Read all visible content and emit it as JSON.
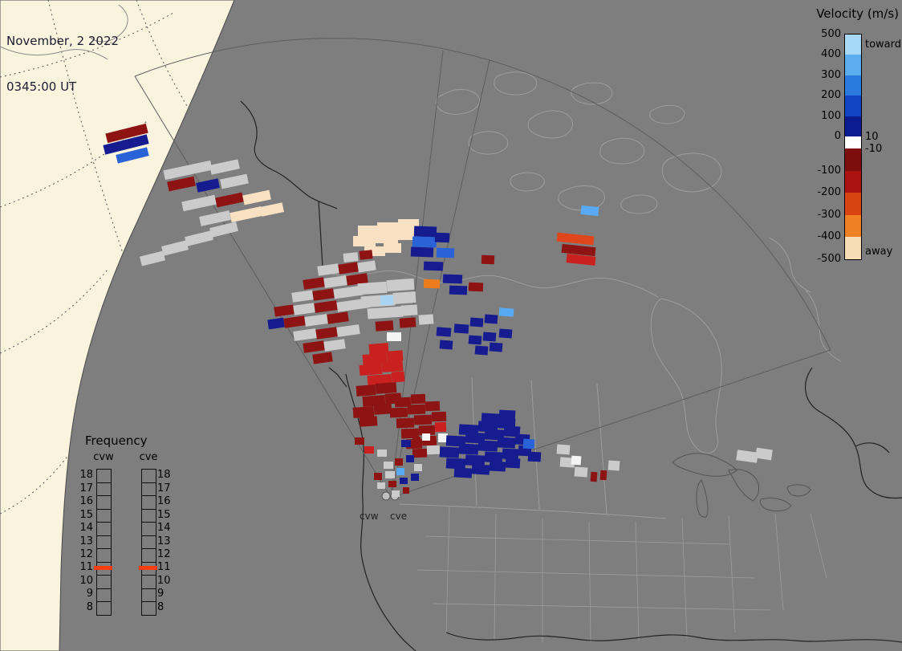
{
  "header": {
    "date": "November, 2 2022",
    "time": "0345:00 UT"
  },
  "velocity_legend": {
    "title": "Velocity (m/s)",
    "toward_label": "toward",
    "away_label": "away",
    "zero_upper": "10",
    "zero_lower": "-10",
    "toward_ticks": [
      "500",
      "400",
      "300",
      "200",
      "100",
      "0"
    ],
    "away_ticks": [
      "-100",
      "-200",
      "-300",
      "-400",
      "-500"
    ],
    "toward_colors": [
      "#a8d8f8",
      "#5cacf0",
      "#2a7ae0",
      "#1244c4",
      "#0a1c90"
    ],
    "away_colors": [
      "#7c0e0e",
      "#ac1212",
      "#d84410",
      "#f08024",
      "#f8dcb4"
    ]
  },
  "frequency_legend": {
    "title": "Frequency",
    "columns": [
      "cvw",
      "cve"
    ],
    "ticks": [
      "18",
      "17",
      "16",
      "15",
      "14",
      "13",
      "12",
      "11",
      "10",
      "9",
      "8"
    ],
    "marker_tick": "11",
    "marker_color": "#f93d10"
  },
  "radar_sites": [
    {
      "label": "cvw"
    },
    {
      "label": "cve"
    }
  ],
  "map": {
    "background": "#7e7e7e",
    "dayside": "#faf4de",
    "colors": {
      "dr": "#8e1414",
      "r": "#c92020",
      "ro": "#e0461c",
      "o": "#ec7c1e",
      "c": "#f8e0c2",
      "g": "#cbcbcb",
      "n": "#161c90",
      "b": "#2a62d8",
      "lb": "#58aaf4",
      "cy": "#a8d4f2",
      "w": "#f4f4f4"
    },
    "cells": [
      [
        "dr",
        132,
        160,
        52,
        12,
        -14
      ],
      [
        "n",
        129,
        174,
        56,
        12,
        -14
      ],
      [
        "b",
        145,
        188,
        40,
        11,
        -14
      ],
      [
        "g",
        204,
        206,
        60,
        12,
        -12
      ],
      [
        "g",
        262,
        202,
        36,
        12,
        -12
      ],
      [
        "dr",
        209,
        223,
        34,
        12,
        -12
      ],
      [
        "n",
        245,
        225,
        28,
        12,
        -12
      ],
      [
        "g",
        275,
        220,
        34,
        12,
        -12
      ],
      [
        "g",
        227,
        247,
        42,
        12,
        -12
      ],
      [
        "dr",
        269,
        243,
        34,
        12,
        -12
      ],
      [
        "c",
        303,
        240,
        34,
        12,
        -12
      ],
      [
        "g",
        249,
        266,
        38,
        12,
        -12
      ],
      [
        "c",
        287,
        261,
        40,
        12,
        -12
      ],
      [
        "c",
        325,
        255,
        28,
        12,
        -12
      ],
      [
        "g",
        175,
        316,
        30,
        12,
        -14
      ],
      [
        "g",
        202,
        303,
        32,
        12,
        -14
      ],
      [
        "g",
        231,
        291,
        34,
        12,
        -14
      ],
      [
        "g",
        262,
        280,
        34,
        12,
        -14
      ],
      [
        "c",
        446,
        281,
        26,
        13,
        0
      ],
      [
        "c",
        470,
        277,
        28,
        13,
        0
      ],
      [
        "c",
        496,
        273,
        26,
        13,
        0
      ],
      [
        "c",
        440,
        294,
        28,
        13,
        0
      ],
      [
        "c",
        466,
        290,
        30,
        13,
        0
      ],
      [
        "c",
        494,
        286,
        26,
        13,
        0
      ],
      [
        "c",
        454,
        307,
        26,
        12,
        0
      ],
      [
        "c",
        478,
        303,
        22,
        12,
        0
      ],
      [
        "n",
        516,
        282,
        28,
        13,
        2
      ],
      [
        "b",
        514,
        295,
        30,
        13,
        2
      ],
      [
        "n",
        512,
        308,
        28,
        12,
        2
      ],
      [
        "n",
        542,
        290,
        18,
        12,
        2
      ],
      [
        "b",
        544,
        309,
        22,
        12,
        2
      ],
      [
        "n",
        528,
        326,
        24,
        11,
        2
      ],
      [
        "g",
        396,
        330,
        26,
        12,
        -8
      ],
      [
        "dr",
        422,
        328,
        24,
        12,
        -8
      ],
      [
        "g",
        446,
        326,
        22,
        12,
        -8
      ],
      [
        "dr",
        378,
        347,
        26,
        12,
        -8
      ],
      [
        "g",
        404,
        345,
        28,
        12,
        -8
      ],
      [
        "dr",
        432,
        342,
        26,
        12,
        -8
      ],
      [
        "g",
        364,
        363,
        26,
        12,
        -8
      ],
      [
        "dr",
        390,
        361,
        26,
        12,
        -8
      ],
      [
        "g",
        416,
        358,
        36,
        12,
        -8
      ],
      [
        "dr",
        342,
        381,
        24,
        12,
        -8
      ],
      [
        "g",
        366,
        379,
        26,
        12,
        -8
      ],
      [
        "dr",
        392,
        376,
        28,
        12,
        -8
      ],
      [
        "g",
        420,
        374,
        40,
        12,
        -8
      ],
      [
        "n",
        334,
        397,
        20,
        12,
        -8
      ],
      [
        "dr",
        354,
        395,
        26,
        12,
        -8
      ],
      [
        "g",
        380,
        393,
        28,
        12,
        -8
      ],
      [
        "dr",
        408,
        390,
        26,
        12,
        -8
      ],
      [
        "g",
        366,
        411,
        28,
        12,
        -8
      ],
      [
        "dr",
        394,
        409,
        26,
        12,
        -8
      ],
      [
        "g",
        420,
        406,
        28,
        12,
        -8
      ],
      [
        "dr",
        378,
        426,
        26,
        12,
        -8
      ],
      [
        "g",
        404,
        424,
        26,
        12,
        -8
      ],
      [
        "dr",
        390,
        440,
        24,
        12,
        -8
      ],
      [
        "g",
        446,
        352,
        36,
        14,
        -4
      ],
      [
        "g",
        482,
        348,
        34,
        14,
        -4
      ],
      [
        "g",
        450,
        368,
        42,
        14,
        -4
      ],
      [
        "g",
        490,
        364,
        28,
        14,
        -4
      ],
      [
        "g",
        458,
        383,
        44,
        13,
        -4
      ],
      [
        "g",
        500,
        380,
        20,
        13,
        -4
      ],
      [
        "cy",
        474,
        368,
        16,
        12,
        0
      ],
      [
        "dr",
        468,
        400,
        22,
        12,
        -4
      ],
      [
        "dr",
        498,
        396,
        20,
        12,
        -4
      ],
      [
        "g",
        522,
        392,
        18,
        12,
        -4
      ],
      [
        "w",
        482,
        414,
        18,
        11,
        0
      ],
      [
        "g",
        428,
        315,
        18,
        11,
        -6
      ],
      [
        "dr",
        448,
        312,
        16,
        11,
        -6
      ],
      [
        "o",
        528,
        348,
        20,
        11,
        2
      ],
      [
        "n",
        552,
        342,
        24,
        11,
        2
      ],
      [
        "n",
        560,
        356,
        22,
        11,
        2
      ],
      [
        "dr",
        584,
        352,
        18,
        11,
        2
      ],
      [
        "dr",
        600,
        318,
        16,
        11,
        2
      ],
      [
        "n",
        544,
        408,
        18,
        11,
        4
      ],
      [
        "n",
        566,
        404,
        18,
        11,
        4
      ],
      [
        "n",
        586,
        396,
        16,
        11,
        4
      ],
      [
        "n",
        604,
        392,
        16,
        11,
        4
      ],
      [
        "n",
        584,
        418,
        16,
        11,
        4
      ],
      [
        "n",
        602,
        414,
        16,
        11,
        4
      ],
      [
        "n",
        622,
        410,
        16,
        11,
        4
      ],
      [
        "n",
        592,
        431,
        16,
        11,
        4
      ],
      [
        "n",
        610,
        427,
        16,
        11,
        4
      ],
      [
        "lb",
        622,
        384,
        18,
        10,
        4
      ],
      [
        "n",
        548,
        424,
        16,
        11,
        4
      ],
      [
        "r",
        460,
        428,
        24,
        13,
        -4
      ],
      [
        "r",
        452,
        441,
        30,
        13,
        -4
      ],
      [
        "r",
        482,
        437,
        20,
        13,
        -4
      ],
      [
        "r",
        448,
        454,
        28,
        13,
        -4
      ],
      [
        "r",
        476,
        450,
        26,
        13,
        -4
      ],
      [
        "r",
        458,
        467,
        30,
        13,
        -4
      ],
      [
        "r",
        488,
        463,
        16,
        13,
        -4
      ],
      [
        "dr",
        444,
        480,
        24,
        13,
        -4
      ],
      [
        "dr",
        468,
        477,
        26,
        13,
        -4
      ],
      [
        "dr",
        452,
        493,
        28,
        13,
        -4
      ],
      [
        "dr",
        480,
        490,
        20,
        13,
        -4
      ],
      [
        "dr",
        440,
        507,
        26,
        13,
        -4
      ],
      [
        "dr",
        466,
        503,
        22,
        13,
        -4
      ],
      [
        "dr",
        448,
        519,
        22,
        12,
        -4
      ],
      [
        "dr",
        492,
        495,
        20,
        12,
        -2
      ],
      [
        "dr",
        512,
        491,
        18,
        12,
        -2
      ],
      [
        "dr",
        486,
        508,
        22,
        12,
        -2
      ],
      [
        "dr",
        508,
        504,
        22,
        12,
        -2
      ],
      [
        "dr",
        530,
        500,
        18,
        12,
        -2
      ],
      [
        "dr",
        494,
        521,
        22,
        12,
        -2
      ],
      [
        "dr",
        516,
        517,
        22,
        12,
        -2
      ],
      [
        "dr",
        538,
        513,
        18,
        12,
        -2
      ],
      [
        "dr",
        500,
        534,
        22,
        12,
        -2
      ],
      [
        "dr",
        522,
        530,
        20,
        12,
        -2
      ],
      [
        "r",
        542,
        526,
        14,
        12,
        -2
      ],
      [
        "dr",
        506,
        547,
        20,
        12,
        -2
      ],
      [
        "dr",
        526,
        543,
        18,
        12,
        -2
      ],
      [
        "dr",
        514,
        559,
        18,
        11,
        -2
      ],
      [
        "g",
        532,
        555,
        16,
        11,
        -2
      ],
      [
        "w",
        546,
        540,
        12,
        11,
        0
      ],
      [
        "n",
        600,
        515,
        22,
        13,
        3
      ],
      [
        "n",
        622,
        511,
        20,
        13,
        3
      ],
      [
        "n",
        572,
        529,
        24,
        13,
        3
      ],
      [
        "n",
        596,
        525,
        24,
        13,
        3
      ],
      [
        "n",
        620,
        521,
        22,
        13,
        3
      ],
      [
        "n",
        556,
        543,
        24,
        13,
        3
      ],
      [
        "n",
        580,
        539,
        24,
        13,
        3
      ],
      [
        "n",
        604,
        535,
        24,
        13,
        3
      ],
      [
        "n",
        628,
        531,
        20,
        13,
        3
      ],
      [
        "n",
        548,
        557,
        24,
        13,
        3
      ],
      [
        "n",
        572,
        553,
        24,
        13,
        3
      ],
      [
        "n",
        596,
        549,
        24,
        13,
        3
      ],
      [
        "n",
        620,
        545,
        22,
        13,
        3
      ],
      [
        "n",
        642,
        541,
        18,
        13,
        3
      ],
      [
        "n",
        556,
        571,
        24,
        13,
        3
      ],
      [
        "n",
        580,
        567,
        24,
        13,
        3
      ],
      [
        "n",
        604,
        563,
        22,
        13,
        3
      ],
      [
        "n",
        626,
        559,
        20,
        13,
        3
      ],
      [
        "n",
        646,
        555,
        16,
        13,
        3
      ],
      [
        "n",
        566,
        583,
        22,
        12,
        3
      ],
      [
        "n",
        588,
        579,
        22,
        12,
        3
      ],
      [
        "n",
        610,
        575,
        20,
        12,
        3
      ],
      [
        "n",
        630,
        571,
        18,
        12,
        3
      ],
      [
        "n",
        658,
        563,
        16,
        12,
        3
      ],
      [
        "b",
        652,
        547,
        14,
        12,
        3
      ],
      [
        "ro",
        694,
        292,
        46,
        11,
        6
      ],
      [
        "dr",
        700,
        306,
        42,
        11,
        6
      ],
      [
        "r",
        706,
        318,
        36,
        11,
        6
      ],
      [
        "lb",
        724,
        257,
        22,
        11,
        6
      ],
      [
        "g",
        918,
        562,
        26,
        13,
        8
      ],
      [
        "g",
        942,
        559,
        20,
        13,
        8
      ],
      [
        "g",
        698,
        570,
        18,
        12,
        4
      ],
      [
        "g",
        716,
        582,
        16,
        12,
        4
      ],
      [
        "dr",
        736,
        588,
        8,
        12,
        4
      ],
      [
        "dr",
        748,
        586,
        8,
        12,
        4
      ],
      [
        "g",
        758,
        574,
        14,
        12,
        4
      ],
      [
        "g",
        694,
        554,
        16,
        12,
        4
      ],
      [
        "w",
        712,
        568,
        12,
        11,
        4
      ],
      [
        "dr",
        442,
        545,
        12,
        9,
        0
      ],
      [
        "r",
        454,
        556,
        12,
        9,
        0
      ],
      [
        "g",
        470,
        560,
        12,
        9,
        0
      ],
      [
        "n",
        500,
        548,
        12,
        9,
        0
      ],
      [
        "dr",
        514,
        544,
        10,
        9,
        0
      ],
      [
        "w",
        526,
        540,
        10,
        9,
        0
      ],
      [
        "g",
        478,
        575,
        12,
        9,
        0
      ],
      [
        "dr",
        492,
        571,
        10,
        9,
        0
      ],
      [
        "n",
        506,
        567,
        10,
        9,
        0
      ],
      [
        "dr",
        466,
        589,
        10,
        9,
        0
      ],
      [
        "g",
        480,
        587,
        12,
        9,
        0
      ],
      [
        "lb",
        494,
        583,
        10,
        9,
        0
      ],
      [
        "g",
        470,
        601,
        10,
        8,
        0
      ],
      [
        "dr",
        484,
        599,
        10,
        8,
        0
      ],
      [
        "n",
        498,
        595,
        10,
        8,
        0
      ],
      [
        "g",
        488,
        611,
        10,
        8,
        0
      ],
      [
        "dr",
        502,
        607,
        8,
        8,
        0
      ],
      [
        "n",
        512,
        590,
        10,
        9,
        0
      ],
      [
        "g",
        516,
        578,
        10,
        9,
        0
      ]
    ]
  }
}
